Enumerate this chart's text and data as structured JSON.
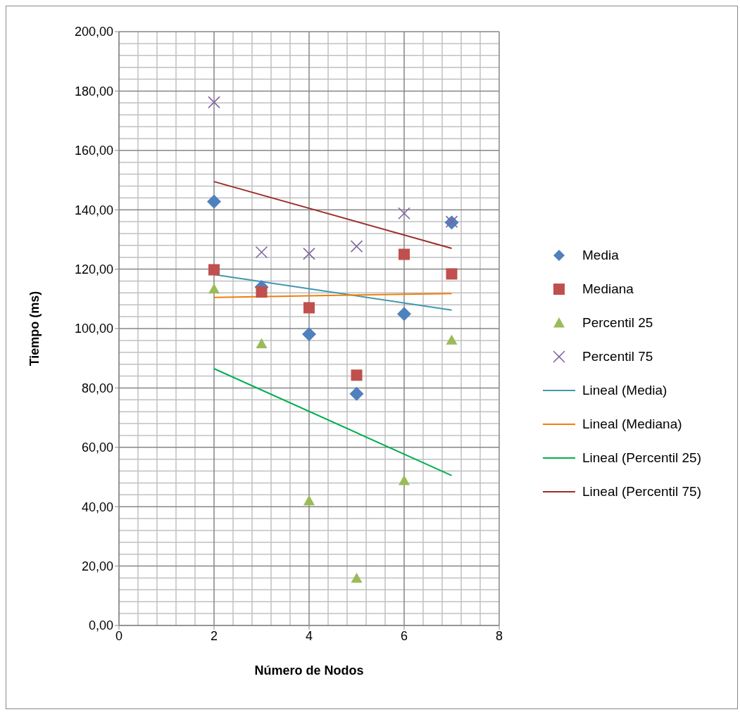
{
  "chart_data": {
    "type": "scatter",
    "xlabel": "Número de Nodos",
    "ylabel": "Tiempo (ms)",
    "xlim": [
      0,
      8
    ],
    "xticks": [
      0,
      2,
      4,
      6,
      8
    ],
    "ylim": [
      0,
      200
    ],
    "yticks": [
      {
        "value": 0,
        "label": "0,00"
      },
      {
        "value": 20,
        "label": "20,00"
      },
      {
        "value": 40,
        "label": "40,00"
      },
      {
        "value": 60,
        "label": "60,00"
      },
      {
        "value": 80,
        "label": "80,00"
      },
      {
        "value": 100,
        "label": "100,00"
      },
      {
        "value": 120,
        "label": "120,00"
      },
      {
        "value": 140,
        "label": "140,00"
      },
      {
        "value": 160,
        "label": "160,00"
      },
      {
        "value": 180,
        "label": "180,00"
      },
      {
        "value": 200,
        "label": "200,00"
      }
    ],
    "grid": true,
    "legend": "right",
    "series": [
      {
        "name": "Media",
        "marker": "diamond",
        "color": "#4f81bd",
        "x": [
          2,
          3,
          4,
          5,
          6,
          7
        ],
        "values": [
          142.8,
          114,
          98.1,
          78,
          104.9,
          135.7
        ]
      },
      {
        "name": "Mediana",
        "marker": "square",
        "color": "#c0504d",
        "x": [
          2,
          3,
          4,
          5,
          6,
          7
        ],
        "values": [
          119.8,
          112.3,
          107,
          84.3,
          125,
          118.4
        ]
      },
      {
        "name": "Percentil 25",
        "marker": "triangle",
        "color": "#9bbb59",
        "x": [
          2,
          3,
          4,
          5,
          6,
          7
        ],
        "values": [
          113.3,
          94.9,
          42,
          15.9,
          48.8,
          96.1
        ]
      },
      {
        "name": "Percentil 75",
        "marker": "cross",
        "color": "#8064a2",
        "x": [
          2,
          3,
          4,
          5,
          6,
          7
        ],
        "values": [
          176.2,
          125.7,
          125.2,
          127.7,
          138.8,
          136
        ]
      },
      {
        "name": "Lineal (Media)",
        "type": "line",
        "marker": "none",
        "color": "#4198af",
        "x": [
          2,
          7
        ],
        "values": [
          118.2,
          106.2
        ]
      },
      {
        "name": "Lineal (Mediana)",
        "type": "line",
        "marker": "none",
        "color": "#f07f09",
        "x": [
          2,
          7
        ],
        "values": [
          110.5,
          111.8
        ]
      },
      {
        "name": "Lineal (Percentil 25)",
        "type": "line",
        "marker": "none",
        "color": "#00b050",
        "x": [
          2,
          7
        ],
        "values": [
          86.5,
          50.5
        ]
      },
      {
        "name": "Lineal (Percentil 75)",
        "type": "line",
        "marker": "none",
        "color": "#9b2d2a",
        "x": [
          2,
          7
        ],
        "values": [
          149.5,
          127
        ]
      }
    ]
  }
}
